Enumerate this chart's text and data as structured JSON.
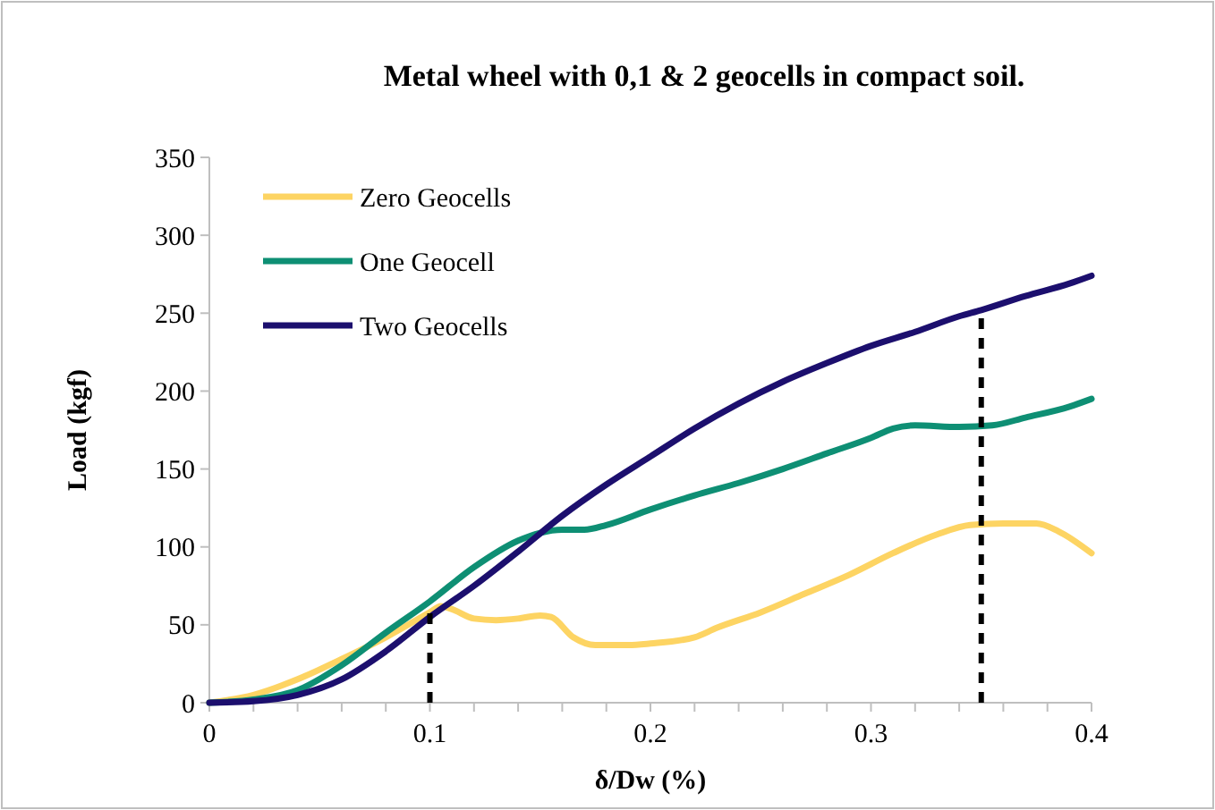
{
  "chart_data": {
    "type": "line",
    "title": "Metal wheel with 0,1 & 2 geocells in compact soil.",
    "xlabel": "δ/Dw (%)",
    "ylabel": "Load (kgf)",
    "xlim": [
      0,
      0.4
    ],
    "ylim": [
      0,
      350
    ],
    "xticks": [
      0,
      {
        "value": 0.02,
        "label": null
      },
      {
        "value": 0.04,
        "label": null
      },
      {
        "value": 0.06,
        "label": null
      },
      {
        "value": 0.08,
        "label": null
      },
      0.1,
      {
        "value": 0.12,
        "label": null
      },
      {
        "value": 0.14,
        "label": null
      },
      {
        "value": 0.16,
        "label": null
      },
      {
        "value": 0.18,
        "label": null
      },
      0.2,
      {
        "value": 0.22,
        "label": null
      },
      {
        "value": 0.24,
        "label": null
      },
      {
        "value": 0.26,
        "label": null
      },
      {
        "value": 0.28,
        "label": null
      },
      0.3,
      {
        "value": 0.32,
        "label": null
      },
      {
        "value": 0.34,
        "label": null
      },
      {
        "value": 0.36,
        "label": null
      },
      {
        "value": 0.38,
        "label": null
      },
      0.4
    ],
    "yticks": [
      0,
      50,
      100,
      150,
      200,
      250,
      300,
      350
    ],
    "grid": false,
    "legend": "top left",
    "marker": "none",
    "line_style": "solid",
    "series": [
      {
        "name": "Zero Geocells",
        "color": "#fdd463",
        "x": [
          0,
          0.02,
          0.04,
          0.06,
          0.08,
          0.1,
          0.105,
          0.11,
          0.12,
          0.13,
          0.14,
          0.15,
          0.155,
          0.165,
          0.175,
          0.19,
          0.2,
          0.22,
          0.23,
          0.25,
          0.27,
          0.29,
          0.31,
          0.33,
          0.345,
          0.36,
          0.375,
          0.385,
          0.4
        ],
        "values": [
          0,
          5,
          15,
          28,
          42,
          58,
          62,
          60,
          54,
          53,
          54,
          56,
          55,
          42,
          37,
          37,
          38,
          42,
          48,
          58,
          70,
          82,
          96,
          108,
          114,
          115,
          115,
          110,
          96
        ]
      },
      {
        "name": "One Geocell",
        "color": "#0e8f74",
        "x": [
          0,
          0.02,
          0.04,
          0.06,
          0.08,
          0.1,
          0.12,
          0.14,
          0.15,
          0.16,
          0.17,
          0.18,
          0.2,
          0.22,
          0.24,
          0.26,
          0.28,
          0.3,
          0.31,
          0.32,
          0.34,
          0.355,
          0.37,
          0.39,
          0.4
        ],
        "values": [
          0,
          2,
          8,
          24,
          45,
          65,
          87,
          104,
          109,
          111,
          111,
          114,
          124,
          133,
          141,
          150,
          160,
          170,
          176,
          178,
          177,
          178,
          183,
          190,
          195
        ]
      },
      {
        "name": "Two Geocells",
        "color": "#1c0f6e",
        "x": [
          0,
          0.02,
          0.04,
          0.06,
          0.08,
          0.1,
          0.12,
          0.14,
          0.16,
          0.18,
          0.2,
          0.22,
          0.24,
          0.26,
          0.28,
          0.3,
          0.32,
          0.34,
          0.35,
          0.37,
          0.39,
          0.4
        ],
        "values": [
          0,
          1,
          5,
          15,
          33,
          55,
          75,
          97,
          120,
          140,
          158,
          176,
          192,
          206,
          218,
          229,
          238,
          248,
          252,
          261,
          269,
          274
        ]
      },
      {
        "color": "#000000",
        "line_style": "dashed",
        "x": [
          0.1,
          0.1
        ],
        "values": [
          0,
          62
        ]
      },
      {
        "color": "#000000",
        "line_style": "dashed",
        "x": [
          0.35,
          0.35
        ],
        "values": [
          0,
          247
        ]
      }
    ]
  }
}
